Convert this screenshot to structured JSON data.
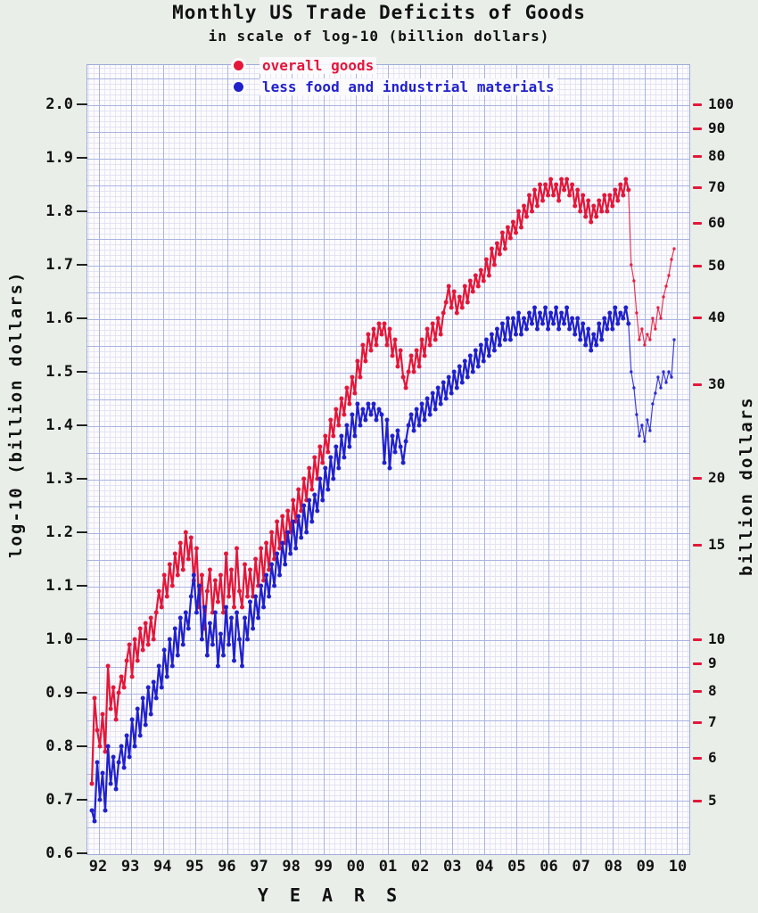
{
  "title": "Monthly US Trade Deficits of Goods",
  "subtitle": "in scale of log-10 (billion dollars)",
  "legend": [
    {
      "label": "overall goods",
      "color": "#e4173a"
    },
    {
      "label": "less food and industrial materials",
      "color": "#2121cc"
    }
  ],
  "y_left_axis": {
    "label": "log-10 (billion dollars)",
    "ticks": [
      "2.0",
      "1.9",
      "1.8",
      "1.7",
      "1.6",
      "1.5",
      "1.4",
      "1.3",
      "1.2",
      "1.1",
      "1.0",
      "0.9",
      "0.8",
      "0.7",
      "0.6"
    ]
  },
  "y_right_axis": {
    "label": "billion dollars",
    "ticks": [
      100,
      90,
      80,
      70,
      60,
      50,
      40,
      30,
      20,
      15,
      10,
      9,
      8,
      7,
      6,
      5
    ]
  },
  "x_axis": {
    "label": "Y E A R S",
    "ticks": [
      "92",
      "93",
      "94",
      "95",
      "96",
      "97",
      "98",
      "99",
      "00",
      "01",
      "02",
      "03",
      "04",
      "05",
      "06",
      "07",
      "08",
      "09",
      "10"
    ]
  },
  "colors": {
    "red_series": "#e4173a",
    "blue_series": "#2121cc",
    "right_tick": "#e4173a",
    "paper": "#fcfcff",
    "grid_major": "#aab4e0",
    "background": "#e9eee9"
  },
  "chart_data": {
    "type": "line",
    "x_start_month": "1992-01",
    "x_end_month": "2010-02",
    "x_unit": "month",
    "y_scale": "log10(billion dollars)",
    "ylim_log10": [
      0.6,
      2.0
    ],
    "right_axis_billion_dollars": [
      100,
      90,
      80,
      70,
      60,
      50,
      40,
      30,
      20,
      15,
      10,
      9,
      8,
      7,
      6,
      5
    ],
    "grid": "graph-paper",
    "legend_position": "top",
    "series": [
      {
        "name": "overall goods",
        "color": "#e4173a",
        "values_log10": [
          0.73,
          0.89,
          0.83,
          0.8,
          0.86,
          0.79,
          0.95,
          0.87,
          0.91,
          0.85,
          0.9,
          0.93,
          0.91,
          0.96,
          0.99,
          0.93,
          1.0,
          0.96,
          1.02,
          0.98,
          1.03,
          0.99,
          1.04,
          1.0,
          1.05,
          1.09,
          1.06,
          1.12,
          1.08,
          1.14,
          1.1,
          1.16,
          1.12,
          1.18,
          1.13,
          1.2,
          1.15,
          1.19,
          1.11,
          1.17,
          1.06,
          1.12,
          1.02,
          1.09,
          1.13,
          1.05,
          1.11,
          1.07,
          1.12,
          1.05,
          1.16,
          1.08,
          1.13,
          1.06,
          1.17,
          1.09,
          1.06,
          1.14,
          1.08,
          1.13,
          1.08,
          1.15,
          1.1,
          1.17,
          1.11,
          1.18,
          1.13,
          1.2,
          1.15,
          1.22,
          1.17,
          1.23,
          1.18,
          1.24,
          1.2,
          1.26,
          1.22,
          1.28,
          1.24,
          1.3,
          1.26,
          1.32,
          1.28,
          1.34,
          1.3,
          1.36,
          1.33,
          1.38,
          1.35,
          1.41,
          1.38,
          1.43,
          1.4,
          1.45,
          1.42,
          1.47,
          1.44,
          1.49,
          1.46,
          1.52,
          1.49,
          1.55,
          1.52,
          1.57,
          1.54,
          1.58,
          1.55,
          1.59,
          1.57,
          1.59,
          1.55,
          1.58,
          1.53,
          1.56,
          1.51,
          1.54,
          1.49,
          1.47,
          1.5,
          1.53,
          1.5,
          1.54,
          1.51,
          1.56,
          1.53,
          1.58,
          1.55,
          1.59,
          1.56,
          1.6,
          1.57,
          1.61,
          1.63,
          1.66,
          1.62,
          1.65,
          1.61,
          1.64,
          1.62,
          1.66,
          1.63,
          1.67,
          1.65,
          1.68,
          1.66,
          1.69,
          1.67,
          1.71,
          1.68,
          1.73,
          1.7,
          1.74,
          1.72,
          1.76,
          1.73,
          1.77,
          1.75,
          1.78,
          1.76,
          1.8,
          1.77,
          1.81,
          1.79,
          1.83,
          1.8,
          1.84,
          1.81,
          1.85,
          1.82,
          1.85,
          1.83,
          1.86,
          1.83,
          1.85,
          1.82,
          1.86,
          1.84,
          1.86,
          1.83,
          1.85,
          1.81,
          1.84,
          1.8,
          1.83,
          1.79,
          1.82,
          1.78,
          1.81,
          1.79,
          1.82,
          1.8,
          1.83,
          1.8,
          1.83,
          1.81,
          1.84,
          1.82,
          1.85,
          1.83,
          1.86,
          1.84,
          1.7,
          1.67,
          1.61,
          1.56,
          1.58,
          1.55,
          1.57,
          1.56,
          1.6,
          1.58,
          1.62,
          1.6,
          1.64,
          1.66,
          1.68,
          1.71,
          1.73
        ]
      },
      {
        "name": "less food and industrial materials",
        "color": "#2121cc",
        "values_log10": [
          0.68,
          0.66,
          0.77,
          0.7,
          0.75,
          0.68,
          0.8,
          0.73,
          0.78,
          0.72,
          0.77,
          0.8,
          0.76,
          0.82,
          0.78,
          0.85,
          0.8,
          0.87,
          0.82,
          0.89,
          0.84,
          0.91,
          0.86,
          0.92,
          0.89,
          0.95,
          0.91,
          0.98,
          0.93,
          1.0,
          0.95,
          1.02,
          0.97,
          1.04,
          0.99,
          1.05,
          1.02,
          1.08,
          1.12,
          1.05,
          1.1,
          1.0,
          1.06,
          0.97,
          1.03,
          0.99,
          1.05,
          0.95,
          1.01,
          0.97,
          1.06,
          0.99,
          1.04,
          0.96,
          1.05,
          1.0,
          0.95,
          1.04,
          1.0,
          1.07,
          1.02,
          1.08,
          1.04,
          1.1,
          1.06,
          1.12,
          1.08,
          1.14,
          1.1,
          1.16,
          1.12,
          1.18,
          1.14,
          1.2,
          1.16,
          1.22,
          1.17,
          1.23,
          1.19,
          1.25,
          1.2,
          1.26,
          1.22,
          1.27,
          1.24,
          1.3,
          1.26,
          1.32,
          1.28,
          1.34,
          1.3,
          1.36,
          1.32,
          1.38,
          1.34,
          1.4,
          1.36,
          1.42,
          1.38,
          1.44,
          1.4,
          1.43,
          1.41,
          1.44,
          1.42,
          1.44,
          1.41,
          1.43,
          1.42,
          1.33,
          1.41,
          1.32,
          1.38,
          1.35,
          1.39,
          1.36,
          1.33,
          1.37,
          1.4,
          1.42,
          1.39,
          1.43,
          1.4,
          1.44,
          1.41,
          1.45,
          1.42,
          1.46,
          1.43,
          1.47,
          1.44,
          1.48,
          1.45,
          1.49,
          1.46,
          1.5,
          1.47,
          1.51,
          1.48,
          1.52,
          1.49,
          1.53,
          1.5,
          1.54,
          1.51,
          1.55,
          1.52,
          1.56,
          1.53,
          1.57,
          1.54,
          1.58,
          1.55,
          1.59,
          1.56,
          1.6,
          1.56,
          1.6,
          1.57,
          1.61,
          1.57,
          1.6,
          1.58,
          1.61,
          1.59,
          1.62,
          1.58,
          1.61,
          1.59,
          1.62,
          1.58,
          1.61,
          1.59,
          1.62,
          1.58,
          1.61,
          1.59,
          1.62,
          1.58,
          1.6,
          1.57,
          1.6,
          1.56,
          1.59,
          1.55,
          1.58,
          1.54,
          1.57,
          1.55,
          1.59,
          1.56,
          1.6,
          1.58,
          1.61,
          1.58,
          1.62,
          1.59,
          1.61,
          1.6,
          1.62,
          1.59,
          1.5,
          1.47,
          1.42,
          1.38,
          1.4,
          1.37,
          1.41,
          1.39,
          1.44,
          1.46,
          1.49,
          1.47,
          1.5,
          1.48,
          1.5,
          1.49,
          1.56
        ]
      }
    ]
  }
}
